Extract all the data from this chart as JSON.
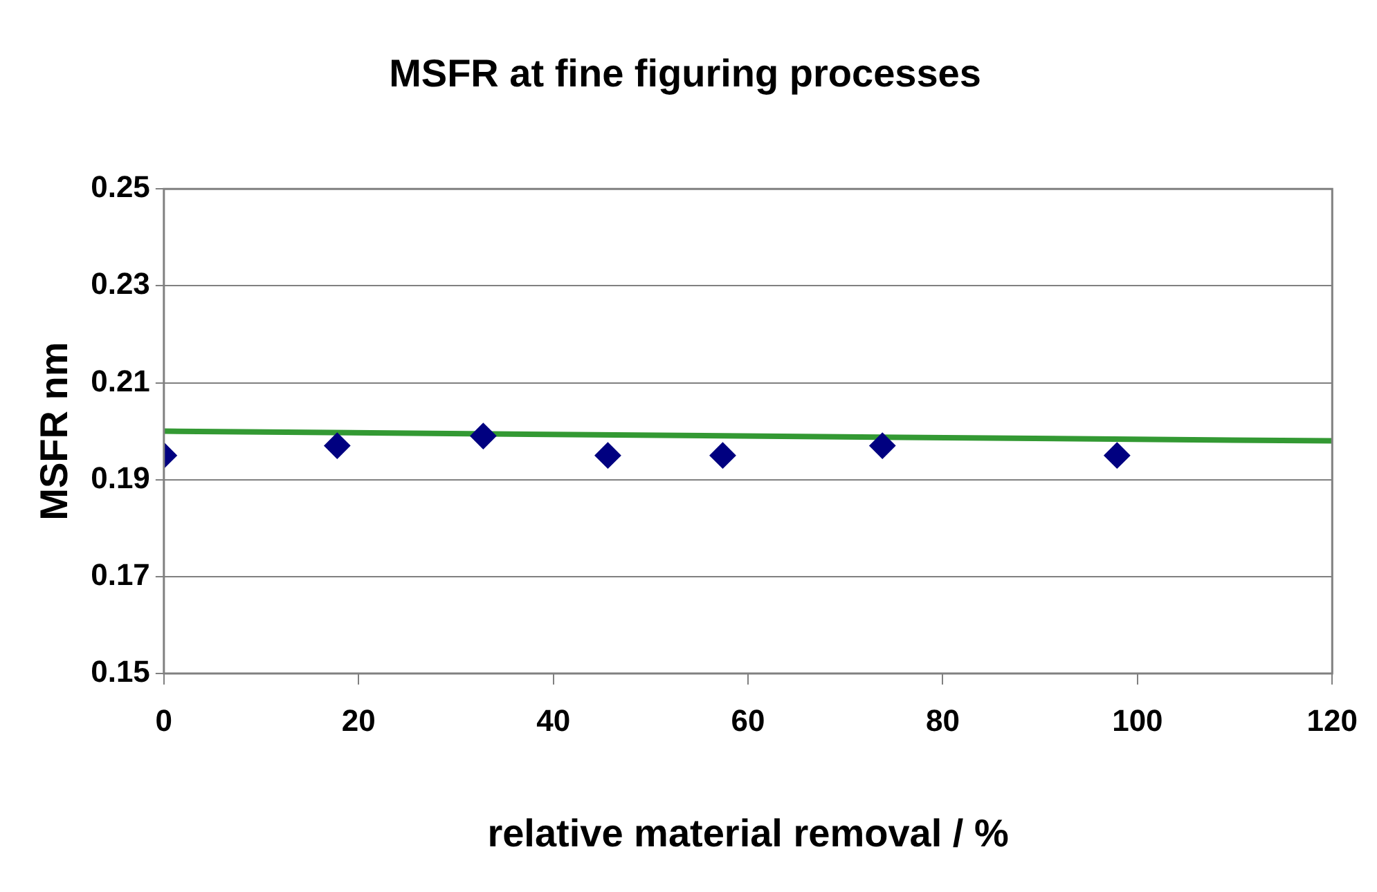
{
  "chart_data": {
    "type": "scatter",
    "title": "MSFR at fine figuring processes",
    "xlabel": "relative material removal / %",
    "ylabel": "MSFR nm",
    "xlim": [
      0,
      120
    ],
    "xticks": [
      0,
      20,
      40,
      60,
      80,
      100,
      120
    ],
    "ylim": [
      0.15,
      0.25
    ],
    "yticks": [
      0.15,
      0.17,
      0.19,
      0.21,
      0.23,
      0.25
    ],
    "grid": "y",
    "legend": false,
    "marker": "diamond",
    "series": [
      {
        "type": "scatter",
        "color": "#000080",
        "x": [
          0,
          17.8,
          32.8,
          45.6,
          57.4,
          73.8,
          97.9
        ],
        "values": [
          0.195,
          0.197,
          0.199,
          0.195,
          0.195,
          0.197,
          0.195
        ]
      },
      {
        "type": "line",
        "color": "#339933",
        "x": [
          0,
          120
        ],
        "values": [
          0.2,
          0.198
        ],
        "marker": "none"
      }
    ]
  }
}
